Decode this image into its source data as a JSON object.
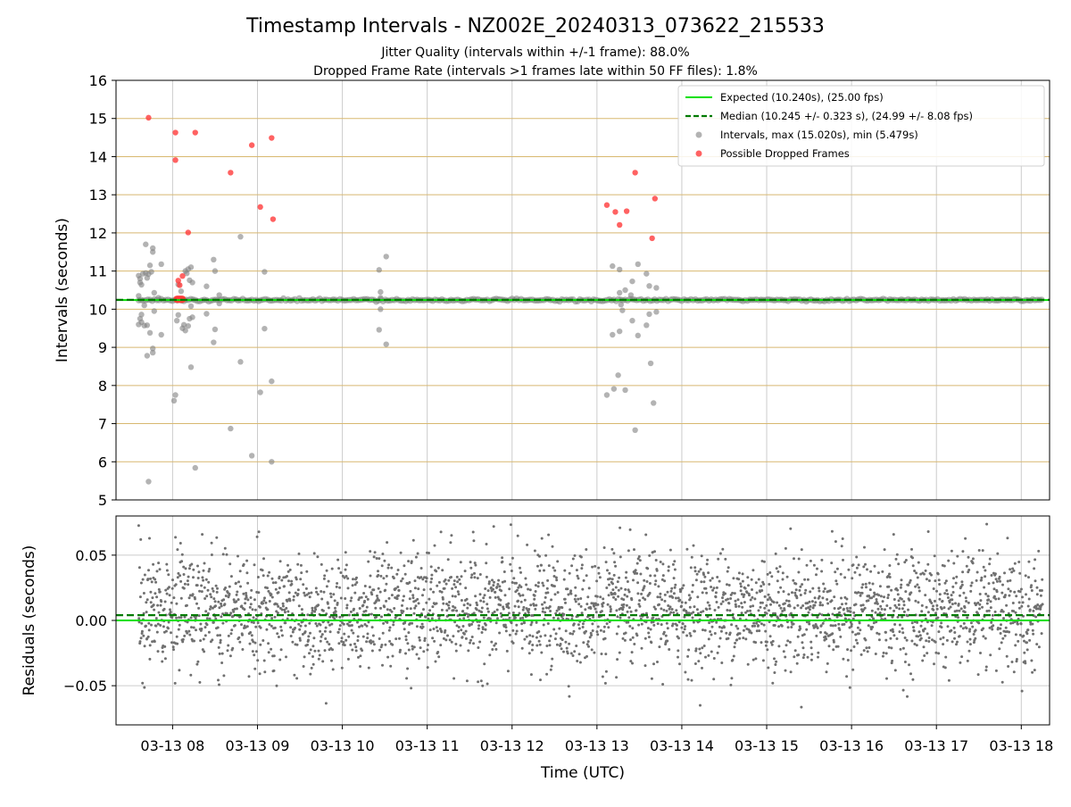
{
  "title": "Timestamp Intervals - NZ002E_20240313_073622_215533",
  "subtitle1": "Jitter Quality (intervals within +/-1 frame): 88.0%",
  "subtitle2": "Dropped Frame Rate (intervals >1 frames late within 50 FF files): 1.8%",
  "colors": {
    "expected": "#00e000",
    "median": "#007a00",
    "intervals": "#808080",
    "dropped": "#ff3b3b",
    "hgrid_top": "#d8b870",
    "grid": "#cccccc",
    "residual": "#707070"
  },
  "chart_data": [
    {
      "type": "scatter",
      "name": "intervals",
      "title": "Timestamp Intervals - NZ002E_20240313_073622_215533",
      "ylabel": "Intervals (seconds)",
      "xlabel": "",
      "xlim": [
        "03-13 07:20",
        "03-13 18:20"
      ],
      "ylim": [
        5,
        16
      ],
      "yticks": [
        5,
        6,
        7,
        8,
        9,
        10,
        11,
        12,
        13,
        14,
        15,
        16
      ],
      "grid": true,
      "legend_position": "top-right",
      "expected": 10.24,
      "median": 10.245,
      "legend": [
        "Expected (10.240s), (25.00 fps)",
        "Median (10.245 +/- 0.323 s), (24.99 +/- 8.08 fps)",
        "Intervals, max (15.020s), min (5.479s)",
        "Possible Dropped Frames"
      ],
      "baseline_x_range": [
        "03-13 07:36",
        "03-13 18:15"
      ],
      "baseline_value": 10.24,
      "outlier_points": [
        [
          "07:36",
          10.88
        ],
        [
          "07:36",
          9.6
        ],
        [
          "07:36",
          10.35
        ],
        [
          "07:37",
          10.8
        ],
        [
          "07:37",
          9.75
        ],
        [
          "07:37",
          10.7
        ],
        [
          "07:38",
          9.86
        ],
        [
          "07:38",
          10.64
        ],
        [
          "07:38",
          9.66
        ],
        [
          "07:39",
          10.93
        ],
        [
          "07:40",
          10.1
        ],
        [
          "07:40",
          9.57
        ],
        [
          "07:41",
          11.7
        ],
        [
          "07:41",
          10.95
        ],
        [
          "07:42",
          8.78
        ],
        [
          "07:42",
          10.82
        ],
        [
          "07:42",
          9.58
        ],
        [
          "07:43",
          5.48
        ],
        [
          "07:43",
          10.92
        ],
        [
          "07:44",
          11.15
        ],
        [
          "07:44",
          9.38
        ],
        [
          "07:45",
          10.98
        ],
        [
          "07:46",
          11.6
        ],
        [
          "07:46",
          11.5
        ],
        [
          "07:46",
          8.86
        ],
        [
          "07:46",
          8.97
        ],
        [
          "07:47",
          10.43
        ],
        [
          "07:47",
          9.95
        ],
        [
          "07:50",
          10.3
        ],
        [
          "07:52",
          11.18
        ],
        [
          "07:52",
          9.33
        ],
        [
          "08:01",
          7.6
        ],
        [
          "08:02",
          7.75
        ],
        [
          "08:03",
          9.7
        ],
        [
          "08:04",
          10.65
        ],
        [
          "08:04",
          9.85
        ],
        [
          "08:06",
          10.47
        ],
        [
          "08:07",
          9.5
        ],
        [
          "08:08",
          9.59
        ],
        [
          "08:09",
          11.0
        ],
        [
          "08:09",
          9.44
        ],
        [
          "08:10",
          10.94
        ],
        [
          "08:11",
          11.05
        ],
        [
          "08:11",
          9.56
        ],
        [
          "08:12",
          10.76
        ],
        [
          "08:12",
          9.75
        ],
        [
          "08:13",
          10.08
        ],
        [
          "08:13",
          8.48
        ],
        [
          "08:13",
          11.1
        ],
        [
          "08:14",
          10.7
        ],
        [
          "08:14",
          9.79
        ],
        [
          "08:16",
          5.84
        ],
        [
          "08:24",
          10.6
        ],
        [
          "08:24",
          9.88
        ],
        [
          "08:29",
          11.3
        ],
        [
          "08:29",
          9.13
        ],
        [
          "08:30",
          11.0
        ],
        [
          "08:30",
          9.47
        ],
        [
          "08:33",
          10.37
        ],
        [
          "08:33",
          10.15
        ],
        [
          "08:41",
          6.87
        ],
        [
          "08:48",
          8.62
        ],
        [
          "08:48",
          11.9
        ],
        [
          "08:56",
          6.16
        ],
        [
          "09:02",
          7.82
        ],
        [
          "09:05",
          9.49
        ],
        [
          "09:05",
          10.98
        ],
        [
          "09:10",
          8.11
        ],
        [
          "09:10",
          6.0
        ],
        [
          "10:26",
          11.03
        ],
        [
          "10:26",
          9.46
        ],
        [
          "10:27",
          10.45
        ],
        [
          "10:27",
          10.0
        ],
        [
          "10:27",
          10.3
        ],
        [
          "10:31",
          11.38
        ],
        [
          "10:31",
          9.08
        ],
        [
          "13:07",
          7.75
        ],
        [
          "13:11",
          11.13
        ],
        [
          "13:11",
          9.33
        ],
        [
          "13:12",
          7.91
        ],
        [
          "13:15",
          8.27
        ],
        [
          "13:16",
          11.04
        ],
        [
          "13:16",
          10.43
        ],
        [
          "13:16",
          9.42
        ],
        [
          "13:17",
          10.12
        ],
        [
          "13:18",
          9.97
        ],
        [
          "13:20",
          10.5
        ],
        [
          "13:20",
          7.88
        ],
        [
          "13:24",
          10.37
        ],
        [
          "13:25",
          9.7
        ],
        [
          "13:25",
          10.73
        ],
        [
          "13:27",
          6.83
        ],
        [
          "13:29",
          9.31
        ],
        [
          "13:29",
          11.18
        ],
        [
          "13:35",
          10.93
        ],
        [
          "13:35",
          9.58
        ],
        [
          "13:37",
          9.87
        ],
        [
          "13:37",
          10.61
        ],
        [
          "13:38",
          8.58
        ],
        [
          "13:40",
          7.54
        ],
        [
          "13:42",
          10.56
        ],
        [
          "13:42",
          9.93
        ]
      ],
      "dropped_points": [
        [
          "07:43",
          15.02
        ],
        [
          "08:02",
          14.63
        ],
        [
          "08:02",
          13.91
        ],
        [
          "08:04",
          10.75
        ],
        [
          "08:05",
          10.63
        ],
        [
          "08:07",
          10.87
        ],
        [
          "08:16",
          14.63
        ],
        [
          "08:11",
          12.01
        ],
        [
          "08:41",
          13.58
        ],
        [
          "08:56",
          14.3
        ],
        [
          "09:02",
          12.68
        ],
        [
          "09:10",
          14.49
        ],
        [
          "09:11",
          12.36
        ],
        [
          "13:07",
          12.73
        ],
        [
          "13:13",
          12.55
        ],
        [
          "13:16",
          12.21
        ],
        [
          "13:21",
          12.57
        ],
        [
          "13:27",
          13.58
        ],
        [
          "13:39",
          11.86
        ],
        [
          "13:41",
          12.9
        ]
      ],
      "dropped_cluster_x_range": [
        "08:03",
        "08:07"
      ],
      "dropped_cluster_value": 10.26
    },
    {
      "type": "scatter",
      "name": "residuals",
      "ylabel": "Residuals (seconds)",
      "xlabel": "Time (UTC)",
      "xlim": [
        "03-13 07:20",
        "03-13 18:20"
      ],
      "ylim": [
        -0.08,
        0.08
      ],
      "yticks": [
        0.05,
        0.0,
        -0.05
      ],
      "ytick_labels": [
        "0.05",
        "0.00",
        "−0.05"
      ],
      "xticks": [
        "03-13 08",
        "03-13 09",
        "03-13 10",
        "03-13 11",
        "03-13 12",
        "03-13 13",
        "03-13 14",
        "03-13 15",
        "03-13 16",
        "03-13 17",
        "03-13 18"
      ],
      "grid": true,
      "expected_line": 0.0,
      "median_line": 0.004,
      "x_range": [
        "03-13 07:36",
        "03-13 18:15"
      ],
      "residual_mean": 0.008,
      "residual_spread": 0.022,
      "residual_count": 3000
    }
  ]
}
